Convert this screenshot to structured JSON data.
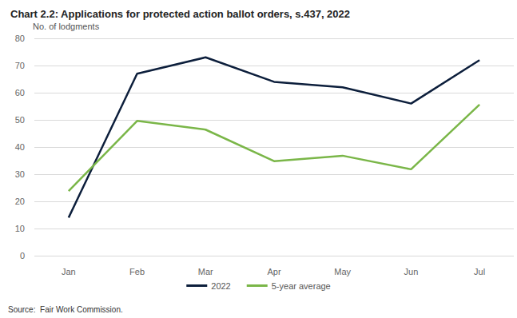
{
  "chart_data": {
    "type": "line",
    "title": "Chart 2.2: Applications for protected action ballot orders, s.437, 2022",
    "y_label": "No. of lodgments",
    "source": "Source:  Fair Work Commission.",
    "categories": [
      "Jan",
      "Feb",
      "Mar",
      "Apr",
      "May",
      "Jun",
      "Jul"
    ],
    "series": [
      {
        "name": "2022",
        "color": "#0d1f3c",
        "values": [
          14,
          67,
          73,
          64,
          62,
          56,
          72
        ]
      },
      {
        "name": "5-year average",
        "color": "#7ab648",
        "values": [
          23.8,
          49.6,
          46.4,
          34.8,
          36.8,
          31.8,
          55.6
        ]
      }
    ],
    "ylim": [
      0,
      80
    ],
    "yticks": [
      0,
      10,
      20,
      30,
      40,
      50,
      60,
      70,
      80
    ],
    "grid": true,
    "legend": "bottom"
  }
}
